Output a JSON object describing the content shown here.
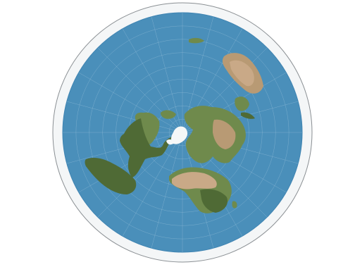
{
  "map": {
    "projection": "azimuthal-equidistant",
    "center": "north-pole",
    "show_graticule": true,
    "colors": {
      "background": "#ffffff",
      "outer_ring": "#f4f6f7",
      "outer_ring_stroke": "#8a8f93",
      "ocean": "#4a8fba",
      "ocean_edge": "#3f84b2",
      "graticule": "#8fbad6",
      "land_green": "#6f8a4c",
      "land_dark": "#4f6a35",
      "land_desert": "#c9a987",
      "land_tan": "#b89a74",
      "ice": "#f5f7f8",
      "ice_shadow": "#dfe6ea"
    },
    "landmasses": [
      "north-america",
      "south-america",
      "greenland",
      "europe",
      "asia",
      "africa",
      "australia",
      "arctic-ice",
      "antarctica-rim"
    ]
  }
}
